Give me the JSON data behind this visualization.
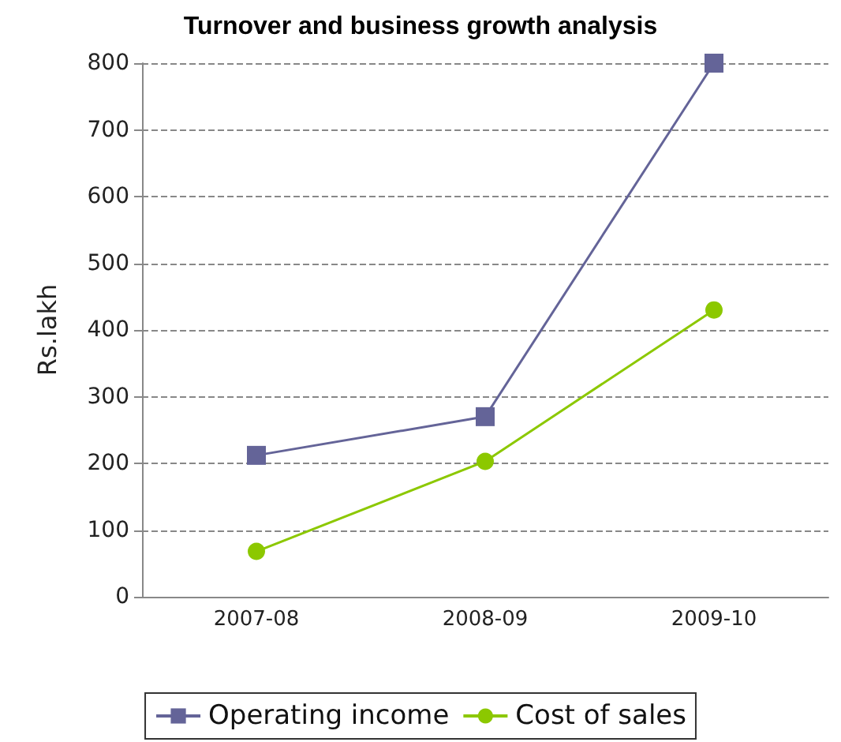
{
  "chart_data": {
    "type": "line",
    "title": "Turnover and business growth analysis",
    "ylabel": "Rs.lakh",
    "categories": [
      "2007-08",
      "2008-09",
      "2009-10"
    ],
    "series": [
      {
        "name": "Operating income",
        "color": "#646498",
        "marker": "square",
        "values": [
          212,
          270,
          800
        ]
      },
      {
        "name": "Cost of sales",
        "color": "#8cc800",
        "marker": "circle",
        "values": [
          68,
          203,
          430
        ]
      }
    ],
    "ylim": [
      0,
      800
    ],
    "yticks": [
      0,
      100,
      200,
      300,
      400,
      500,
      600,
      700,
      800
    ],
    "grid": "y",
    "legend": "bottom"
  }
}
